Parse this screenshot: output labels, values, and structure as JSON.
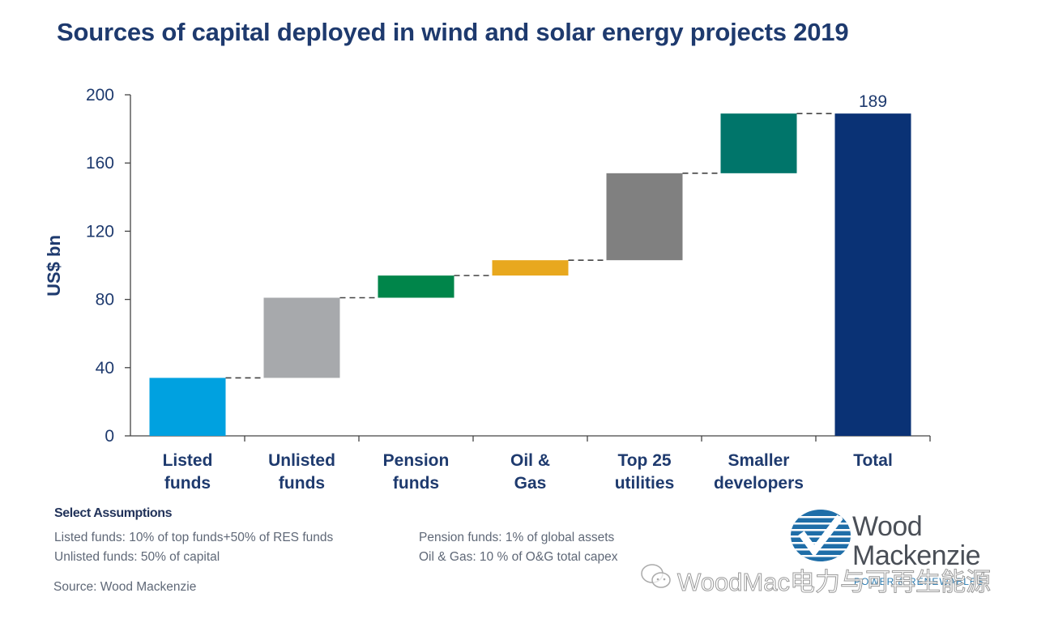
{
  "title": "Sources of capital deployed in wind and solar energy projects 2019",
  "chart_data": {
    "type": "waterfall",
    "title": "Sources of capital deployed in wind and solar energy projects 2019",
    "xlabel": "",
    "ylabel": "US$ bn",
    "ylim": [
      0,
      200
    ],
    "yticks": [
      0,
      40,
      80,
      120,
      160,
      200
    ],
    "grid": false,
    "categories": [
      [
        "Listed",
        "funds"
      ],
      [
        "Unlisted",
        "funds"
      ],
      [
        "Pension",
        "funds"
      ],
      [
        "Oil &",
        "Gas"
      ],
      [
        "Top 25",
        "utilities"
      ],
      [
        "Smaller",
        "developers"
      ],
      [
        "Total"
      ]
    ],
    "series": [
      {
        "name": "Listed funds",
        "start": 0,
        "end": 34,
        "value": 34,
        "color": "#00a1e0"
      },
      {
        "name": "Unlisted funds",
        "start": 34,
        "end": 81,
        "value": 47,
        "color": "#a7a9ac"
      },
      {
        "name": "Pension funds",
        "start": 81,
        "end": 94,
        "value": 13,
        "color": "#00854a"
      },
      {
        "name": "Oil & Gas",
        "start": 94,
        "end": 103,
        "value": 9,
        "color": "#e8a81e"
      },
      {
        "name": "Top 25 utilities",
        "start": 103,
        "end": 154,
        "value": 51,
        "color": "#808080"
      },
      {
        "name": "Smaller developers",
        "start": 154,
        "end": 189,
        "value": 35,
        "color": "#00756a"
      },
      {
        "name": "Total",
        "start": 0,
        "end": 189,
        "value": 189,
        "color": "#0a3275",
        "label": "189"
      }
    ],
    "connectors": "dashed"
  },
  "assumptions": {
    "heading": "Select Assumptions",
    "items": [
      "Listed funds: 10% of top funds+50% of RES funds",
      "Unlisted funds: 50% of capital",
      "Pension funds: 1% of global assets",
      "Oil & Gas: 10 % of O&G total capex"
    ]
  },
  "source": "Source: Wood Mackenzie",
  "logo": {
    "line1": "Wood",
    "line2": "Mackenzie",
    "subtitle": "POWER & RENEWABLES"
  },
  "watermark": "WoodMac电力与可再生能源",
  "colors": {
    "title": "#1e3a6e",
    "axis_text": "#1e3a6e",
    "logo_blue": "#1f6ea8"
  }
}
